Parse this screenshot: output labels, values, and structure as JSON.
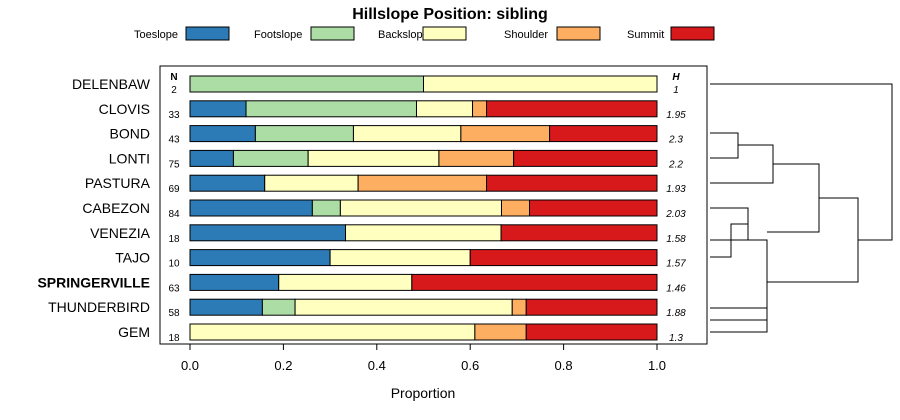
{
  "chart_data": {
    "type": "bar",
    "orientation": "horizontal",
    "stacked": true,
    "title": "Hillslope Position: sibling",
    "xlabel": "Proportion",
    "ylabel": "",
    "xlim": [
      0,
      1
    ],
    "xticks": [
      "0.0",
      "0.2",
      "0.4",
      "0.6",
      "0.8",
      "1.0"
    ],
    "legend_position": "top",
    "n_header": "N",
    "h_header": "H",
    "highlighted_category": "SPRINGERVILLE",
    "series": [
      {
        "name": "Toeslope",
        "color": "#2c7bb6"
      },
      {
        "name": "Footslope",
        "color": "#abdda4"
      },
      {
        "name": "Backslope",
        "color": "#ffffbf"
      },
      {
        "name": "Shoulder",
        "color": "#fdae61"
      },
      {
        "name": "Summit",
        "color": "#d7191c"
      }
    ],
    "categories": [
      "DELENBAW",
      "CLOVIS",
      "BOND",
      "LONTI",
      "PASTURA",
      "CABEZON",
      "VENEZIA",
      "TAJO",
      "SPRINGERVILLE",
      "THUNDERBIRD",
      "GEM"
    ],
    "n": [
      "2",
      "33",
      "43",
      "75",
      "69",
      "84",
      "18",
      "10",
      "63",
      "58",
      "18"
    ],
    "h": [
      "1",
      "1.95",
      "2.3",
      "2.2",
      "1.93",
      "2.03",
      "1.58",
      "1.57",
      "1.46",
      "1.88",
      "1.3"
    ],
    "values": [
      [
        0,
        0.5,
        0.5,
        0,
        0
      ],
      [
        0.12,
        0.365,
        0.12,
        0.03,
        0.365
      ],
      [
        0.14,
        0.21,
        0.23,
        0.19,
        0.23
      ],
      [
        0.093,
        0.16,
        0.28,
        0.16,
        0.307
      ],
      [
        0.16,
        0,
        0.2,
        0.275,
        0.365
      ],
      [
        0.262,
        0.06,
        0.345,
        0.06,
        0.273
      ],
      [
        0.333,
        0,
        0.333,
        0,
        0.334
      ],
      [
        0.3,
        0,
        0.3,
        0,
        0.4
      ],
      [
        0.19,
        0,
        0.285,
        0,
        0.525
      ],
      [
        0.155,
        0.07,
        0.465,
        0.03,
        0.28
      ],
      [
        0,
        0,
        0.61,
        0.11,
        0.28
      ]
    ],
    "dendrogram": {
      "merges": [
        [
          "CABEZON",
          "VENEZIA",
          "TAJO"
        ],
        [
          "CLOVIS",
          "BOND",
          "LONTI",
          "PASTURA"
        ],
        [
          "SPRINGERVILLE",
          "THUNDERBIRD",
          "GEM"
        ]
      ]
    }
  }
}
